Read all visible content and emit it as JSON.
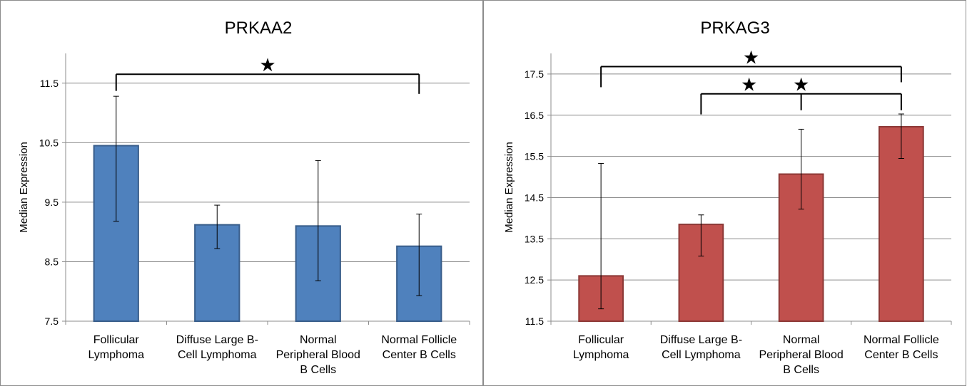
{
  "chart_data": [
    {
      "type": "bar",
      "title": "PRKAA2",
      "ylabel": "Median Expression",
      "xlabel": "",
      "categories": [
        [
          "Follicular",
          "Lymphoma"
        ],
        [
          "Diffuse Large B-",
          "Cell Lymphoma"
        ],
        [
          "Normal",
          "Peripheral Blood",
          "B Cells"
        ],
        [
          "Normal Follicle",
          "Center B Cells"
        ]
      ],
      "values": [
        10.45,
        9.12,
        9.1,
        8.76
      ],
      "error_low": [
        9.18,
        8.72,
        8.18,
        7.93
      ],
      "error_high": [
        11.28,
        9.45,
        10.2,
        9.3
      ],
      "ylim": [
        7.5,
        12.0
      ],
      "yticks": [
        7.5,
        8.5,
        9.5,
        10.5,
        11.5
      ],
      "ytick_labels": [
        "7.5",
        "8.5",
        "9.5",
        "10.5",
        "11.5"
      ],
      "grid": true,
      "bar_color": "#4f81bd",
      "bar_edge": "#385d8a",
      "significance": [
        {
          "from": 0,
          "to": 3,
          "y": 11.65,
          "drop_from": 0.28,
          "drop_to": 0.33,
          "stars": [
            "★"
          ],
          "star_cats": [
            1.5
          ]
        }
      ]
    },
    {
      "type": "bar",
      "title": "PRKAG3",
      "ylabel": "Median Expression",
      "xlabel": "",
      "categories": [
        [
          "Follicular",
          "Lymphoma"
        ],
        [
          "Diffuse Large B-",
          "Cell Lymphoma"
        ],
        [
          "Normal",
          "Peripheral Blood",
          "B Cells"
        ],
        [
          "Normal Follicle",
          "Center B Cells"
        ]
      ],
      "values": [
        12.6,
        13.85,
        15.07,
        16.22
      ],
      "error_low": [
        11.8,
        13.08,
        14.22,
        15.45
      ],
      "error_high": [
        15.33,
        14.08,
        16.16,
        16.53
      ],
      "ylim": [
        11.5,
        18.0
      ],
      "yticks": [
        11.5,
        12.5,
        13.5,
        14.5,
        15.5,
        16.5,
        17.5
      ],
      "ytick_labels": [
        "11.5",
        "12.5",
        "13.5",
        "14.5",
        "15.5",
        "16.5",
        "17.5"
      ],
      "grid": true,
      "bar_color": "#c0504d",
      "bar_edge": "#8c3836",
      "significance": [
        {
          "from": 0,
          "to": 3,
          "y": 17.68,
          "drop_from": 0.5,
          "drop_to": 0.38,
          "stars": [
            "★"
          ],
          "star_cats": [
            1.5
          ]
        },
        {
          "from": 1,
          "to": 3,
          "y": 17.02,
          "drop_from": 0.5,
          "drop_to": 0.4,
          "mid": 2,
          "drop_mid": 0.4,
          "stars": [
            "★",
            "★"
          ],
          "star_cats": [
            1.48,
            2.0
          ]
        }
      ]
    }
  ]
}
